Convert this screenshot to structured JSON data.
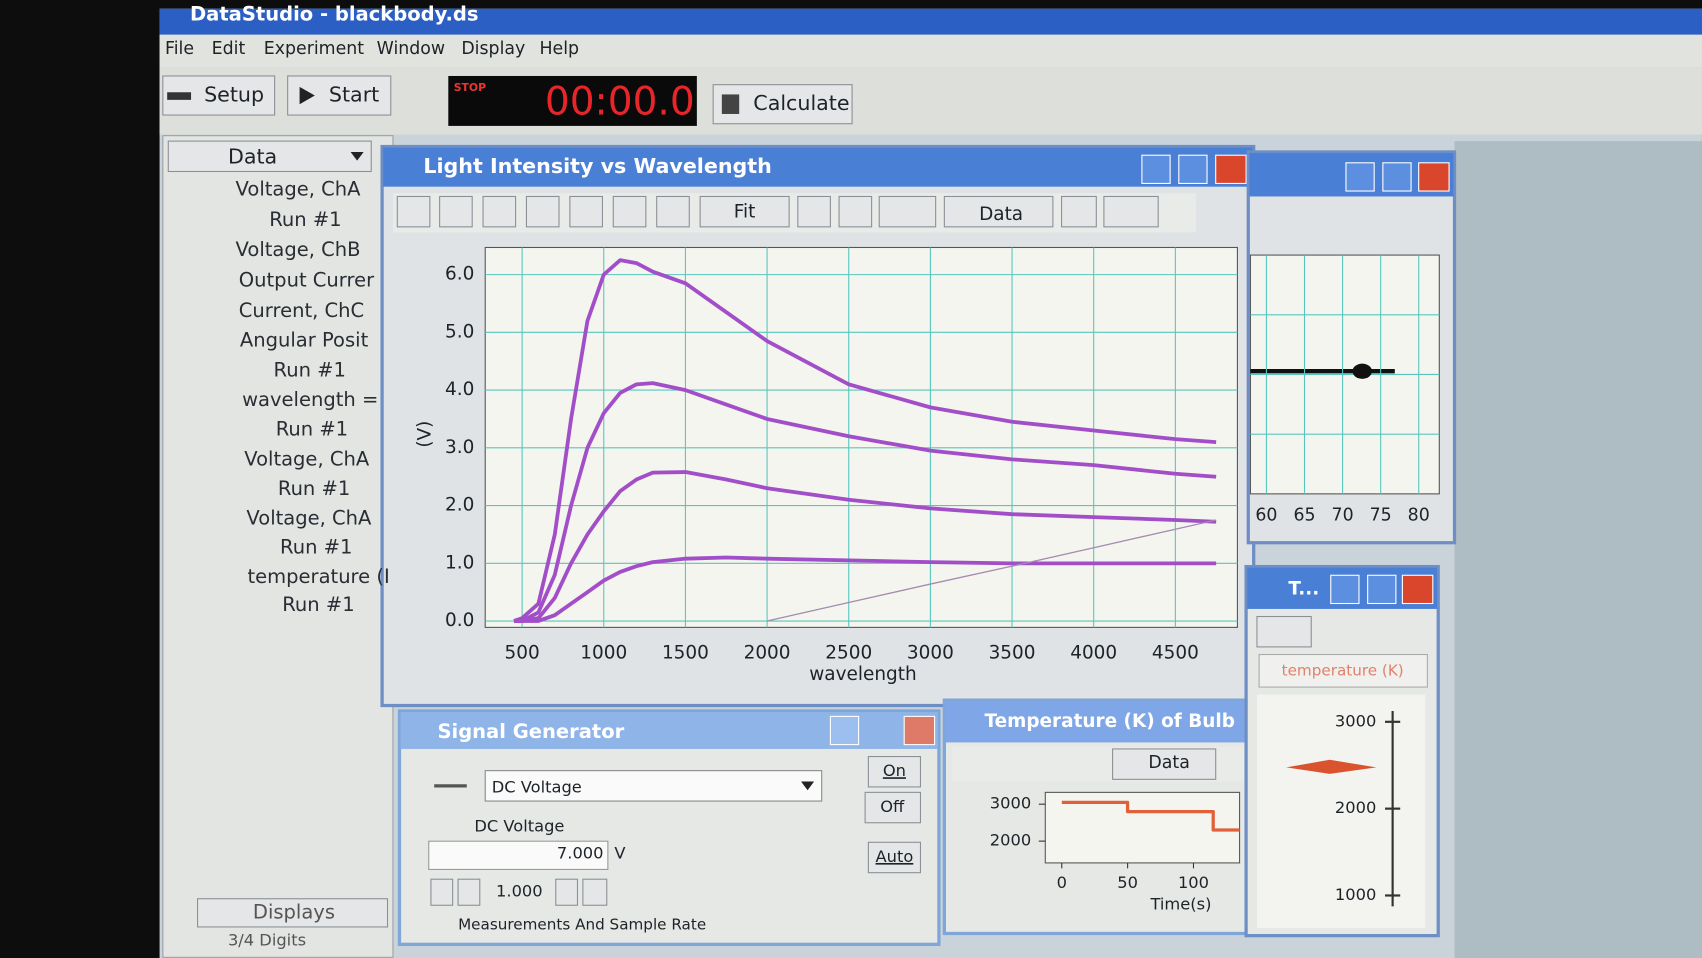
{
  "window": {
    "title": "DataStudio - blackbody.ds"
  },
  "menu": [
    "File",
    "Edit",
    "Experiment",
    "Window",
    "Display",
    "Help"
  ],
  "toolbar": {
    "setup": "Setup",
    "start": "Start",
    "stop_label": "STOP",
    "timer": "00:00.0",
    "calculate": "Calculate"
  },
  "data_panel": {
    "header": "Data",
    "items": [
      "Voltage, ChA",
      "Run #1",
      "Voltage, ChB",
      "Output Currer",
      "Current, ChC",
      "Angular Posit",
      "Run #1",
      "wavelength =",
      "Run #1",
      "Voltage, ChA",
      "Run #1",
      "Voltage, ChA",
      "Run #1",
      "temperature (I",
      "Run #1"
    ],
    "displays": "Displays",
    "digits": "3/4 Digits"
  },
  "graph_window": {
    "title": "Light Intensity vs Wavelength",
    "fit": "Fit",
    "data": "Data",
    "chart_data": {
      "type": "line",
      "xlabel": "wavelength",
      "ylabel": "(V)",
      "xlim": [
        274,
        4880
      ],
      "ylim": [
        -0.11,
        6.47
      ],
      "xticks": [
        500,
        1000,
        1500,
        2000,
        2500,
        3000,
        3500,
        4000,
        4500
      ],
      "yticks": [
        {
          "value": 0,
          "label": "0.0"
        },
        {
          "value": 1,
          "label": "1.0"
        },
        {
          "value": 2,
          "label": "2.0"
        },
        {
          "value": 3,
          "label": "3.0"
        },
        {
          "value": 4,
          "label": "4.0"
        },
        {
          "value": 5,
          "label": "5.0"
        },
        {
          "value": 6,
          "label": "6.0"
        }
      ],
      "grid": true,
      "x": [
        450,
        500,
        600,
        700,
        800,
        900,
        1000,
        1100,
        1200,
        1300,
        1500,
        1750,
        2000,
        2500,
        3000,
        3500,
        4000,
        4500,
        4750
      ],
      "series": [
        {
          "color": "#a24ec8",
          "values": [
            0,
            0.05,
            0.3,
            1.5,
            3.5,
            5.2,
            6.0,
            6.25,
            6.2,
            6.05,
            5.85,
            5.35,
            4.85,
            4.1,
            3.7,
            3.45,
            3.3,
            3.15,
            3.1
          ]
        },
        {
          "color": "#a24ec8",
          "values": [
            0,
            0,
            0.15,
            0.8,
            2.0,
            3.0,
            3.6,
            3.95,
            4.1,
            4.12,
            4.0,
            3.75,
            3.5,
            3.2,
            2.95,
            2.8,
            2.7,
            2.55,
            2.5
          ]
        },
        {
          "color": "#a24ec8",
          "values": [
            0,
            0,
            0.05,
            0.4,
            1.0,
            1.5,
            1.9,
            2.25,
            2.45,
            2.57,
            2.58,
            2.45,
            2.3,
            2.1,
            1.95,
            1.85,
            1.8,
            1.75,
            1.72
          ]
        },
        {
          "color": "#a24ec8",
          "values": [
            0,
            0,
            0,
            0.1,
            0.3,
            0.5,
            0.7,
            0.85,
            0.95,
            1.02,
            1.08,
            1.1,
            1.08,
            1.05,
            1.02,
            1.0,
            1.0,
            1.0,
            1.0
          ]
        },
        {
          "color": "#a58bb0",
          "values": [
            null,
            null,
            null,
            null,
            null,
            null,
            null,
            null,
            null,
            null,
            null,
            null,
            0,
            0.32,
            0.64,
            0.95,
            1.27,
            1.59,
            1.75
          ]
        }
      ]
    }
  },
  "side_graph": {
    "xlim": [
      57.9,
      82.7
    ],
    "xticks": [
      60,
      65,
      70,
      75,
      80
    ]
  },
  "signal_generator": {
    "title": "Signal Generator",
    "waveform": "DC Voltage",
    "field_label": "DC Voltage",
    "voltage": "7.000",
    "unit": "V",
    "on": "On",
    "off": "Off",
    "auto": "Auto",
    "step": "1.000",
    "footer": "Measurements And Sample Rate"
  },
  "temperature_window": {
    "title": "Temperature (K) of Bulb",
    "data": "Data",
    "chart_data": {
      "type": "line",
      "xlabel": "Time(s)",
      "xlim": [
        -12.5,
        135
      ],
      "ylim": [
        1410,
        3320
      ],
      "xticks": [
        0,
        50,
        100
      ],
      "yticks": [
        2000,
        3000
      ],
      "x": [
        0,
        50,
        50,
        115,
        115,
        135
      ],
      "series": [
        {
          "color": "#e0603a",
          "values": [
            3050,
            3050,
            2800,
            2800,
            2300,
            2300
          ]
        }
      ]
    }
  },
  "meter_window": {
    "title": "T...",
    "label": "temperature (K)",
    "ylim": [
      875,
      3125
    ],
    "ticks": [
      1000,
      2000,
      3000
    ],
    "value": 2475,
    "color": "#d9532e"
  }
}
